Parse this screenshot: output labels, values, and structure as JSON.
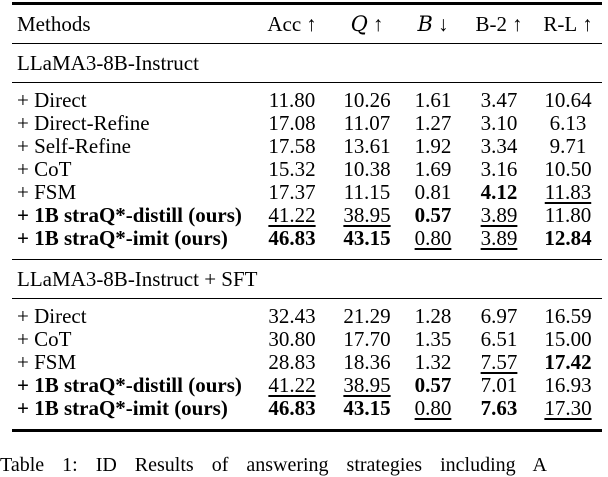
{
  "table": {
    "columns": [
      {
        "label": "Methods",
        "arrow": ""
      },
      {
        "label": "Acc",
        "arrow": "↑"
      },
      {
        "label": "Q",
        "arrow": "↑",
        "script": true
      },
      {
        "label": "B",
        "arrow": "↓",
        "script": true
      },
      {
        "label": "B-2",
        "arrow": "↑"
      },
      {
        "label": "R-L",
        "arrow": "↑"
      }
    ],
    "sections": [
      {
        "header": "LLaMA3-8B-Instruct",
        "rows": [
          {
            "method": "+ Direct",
            "bold": false,
            "cells": [
              {
                "v": "11.80"
              },
              {
                "v": "10.26"
              },
              {
                "v": "1.61"
              },
              {
                "v": "3.47"
              },
              {
                "v": "10.64"
              }
            ]
          },
          {
            "method": "+ Direct-Refine",
            "bold": false,
            "cells": [
              {
                "v": "17.08"
              },
              {
                "v": "11.07"
              },
              {
                "v": "1.27"
              },
              {
                "v": "3.10"
              },
              {
                "v": "6.13"
              }
            ]
          },
          {
            "method": "+ Self-Refine",
            "bold": false,
            "cells": [
              {
                "v": "17.58"
              },
              {
                "v": "13.61"
              },
              {
                "v": "1.92"
              },
              {
                "v": "3.34"
              },
              {
                "v": "9.71"
              }
            ]
          },
          {
            "method": "+ CoT",
            "bold": false,
            "cells": [
              {
                "v": "15.32"
              },
              {
                "v": "10.38"
              },
              {
                "v": "1.69"
              },
              {
                "v": "3.16"
              },
              {
                "v": "10.50"
              }
            ]
          },
          {
            "method": "+ FSM",
            "bold": false,
            "cells": [
              {
                "v": "17.37"
              },
              {
                "v": "11.15"
              },
              {
                "v": "0.81"
              },
              {
                "v": "4.12",
                "b": true
              },
              {
                "v": "11.83",
                "u": true
              }
            ]
          },
          {
            "method": "+ 1B straQ*-distill (ours)",
            "bold": true,
            "cells": [
              {
                "v": "41.22",
                "u": true
              },
              {
                "v": "38.95",
                "u": true
              },
              {
                "v": "0.57",
                "b": true
              },
              {
                "v": "3.89",
                "u": true
              },
              {
                "v": "11.80"
              }
            ]
          },
          {
            "method": "+ 1B straQ*-imit (ours)",
            "bold": true,
            "cells": [
              {
                "v": "46.83",
                "b": true
              },
              {
                "v": "43.15",
                "b": true
              },
              {
                "v": "0.80",
                "u": true
              },
              {
                "v": "3.89",
                "u": true
              },
              {
                "v": "12.84",
                "b": true
              }
            ]
          }
        ]
      },
      {
        "header": "LLaMA3-8B-Instruct + SFT",
        "rows": [
          {
            "method": "+ Direct",
            "bold": false,
            "cells": [
              {
                "v": "32.43"
              },
              {
                "v": "21.29"
              },
              {
                "v": "1.28"
              },
              {
                "v": "6.97"
              },
              {
                "v": "16.59"
              }
            ]
          },
          {
            "method": "+ CoT",
            "bold": false,
            "cells": [
              {
                "v": "30.80"
              },
              {
                "v": "17.70"
              },
              {
                "v": "1.35"
              },
              {
                "v": "6.51"
              },
              {
                "v": "15.00"
              }
            ]
          },
          {
            "method": "+ FSM",
            "bold": false,
            "cells": [
              {
                "v": "28.83"
              },
              {
                "v": "18.36"
              },
              {
                "v": "1.32"
              },
              {
                "v": "7.57",
                "u": true
              },
              {
                "v": "17.42",
                "b": true
              }
            ]
          },
          {
            "method": "+ 1B straQ*-distill (ours)",
            "bold": true,
            "cells": [
              {
                "v": "41.22",
                "u": true
              },
              {
                "v": "38.95",
                "u": true
              },
              {
                "v": "0.57",
                "b": true
              },
              {
                "v": "7.01"
              },
              {
                "v": "16.93"
              }
            ]
          },
          {
            "method": "+ 1B straQ*-imit (ours)",
            "bold": true,
            "cells": [
              {
                "v": "46.83",
                "b": true
              },
              {
                "v": "43.15",
                "b": true
              },
              {
                "v": "0.80",
                "u": true
              },
              {
                "v": "7.63",
                "b": true
              },
              {
                "v": "17.30",
                "u": true
              }
            ]
          }
        ]
      }
    ]
  },
  "caption": "Table 1: ID Results of answering strategies including A"
}
